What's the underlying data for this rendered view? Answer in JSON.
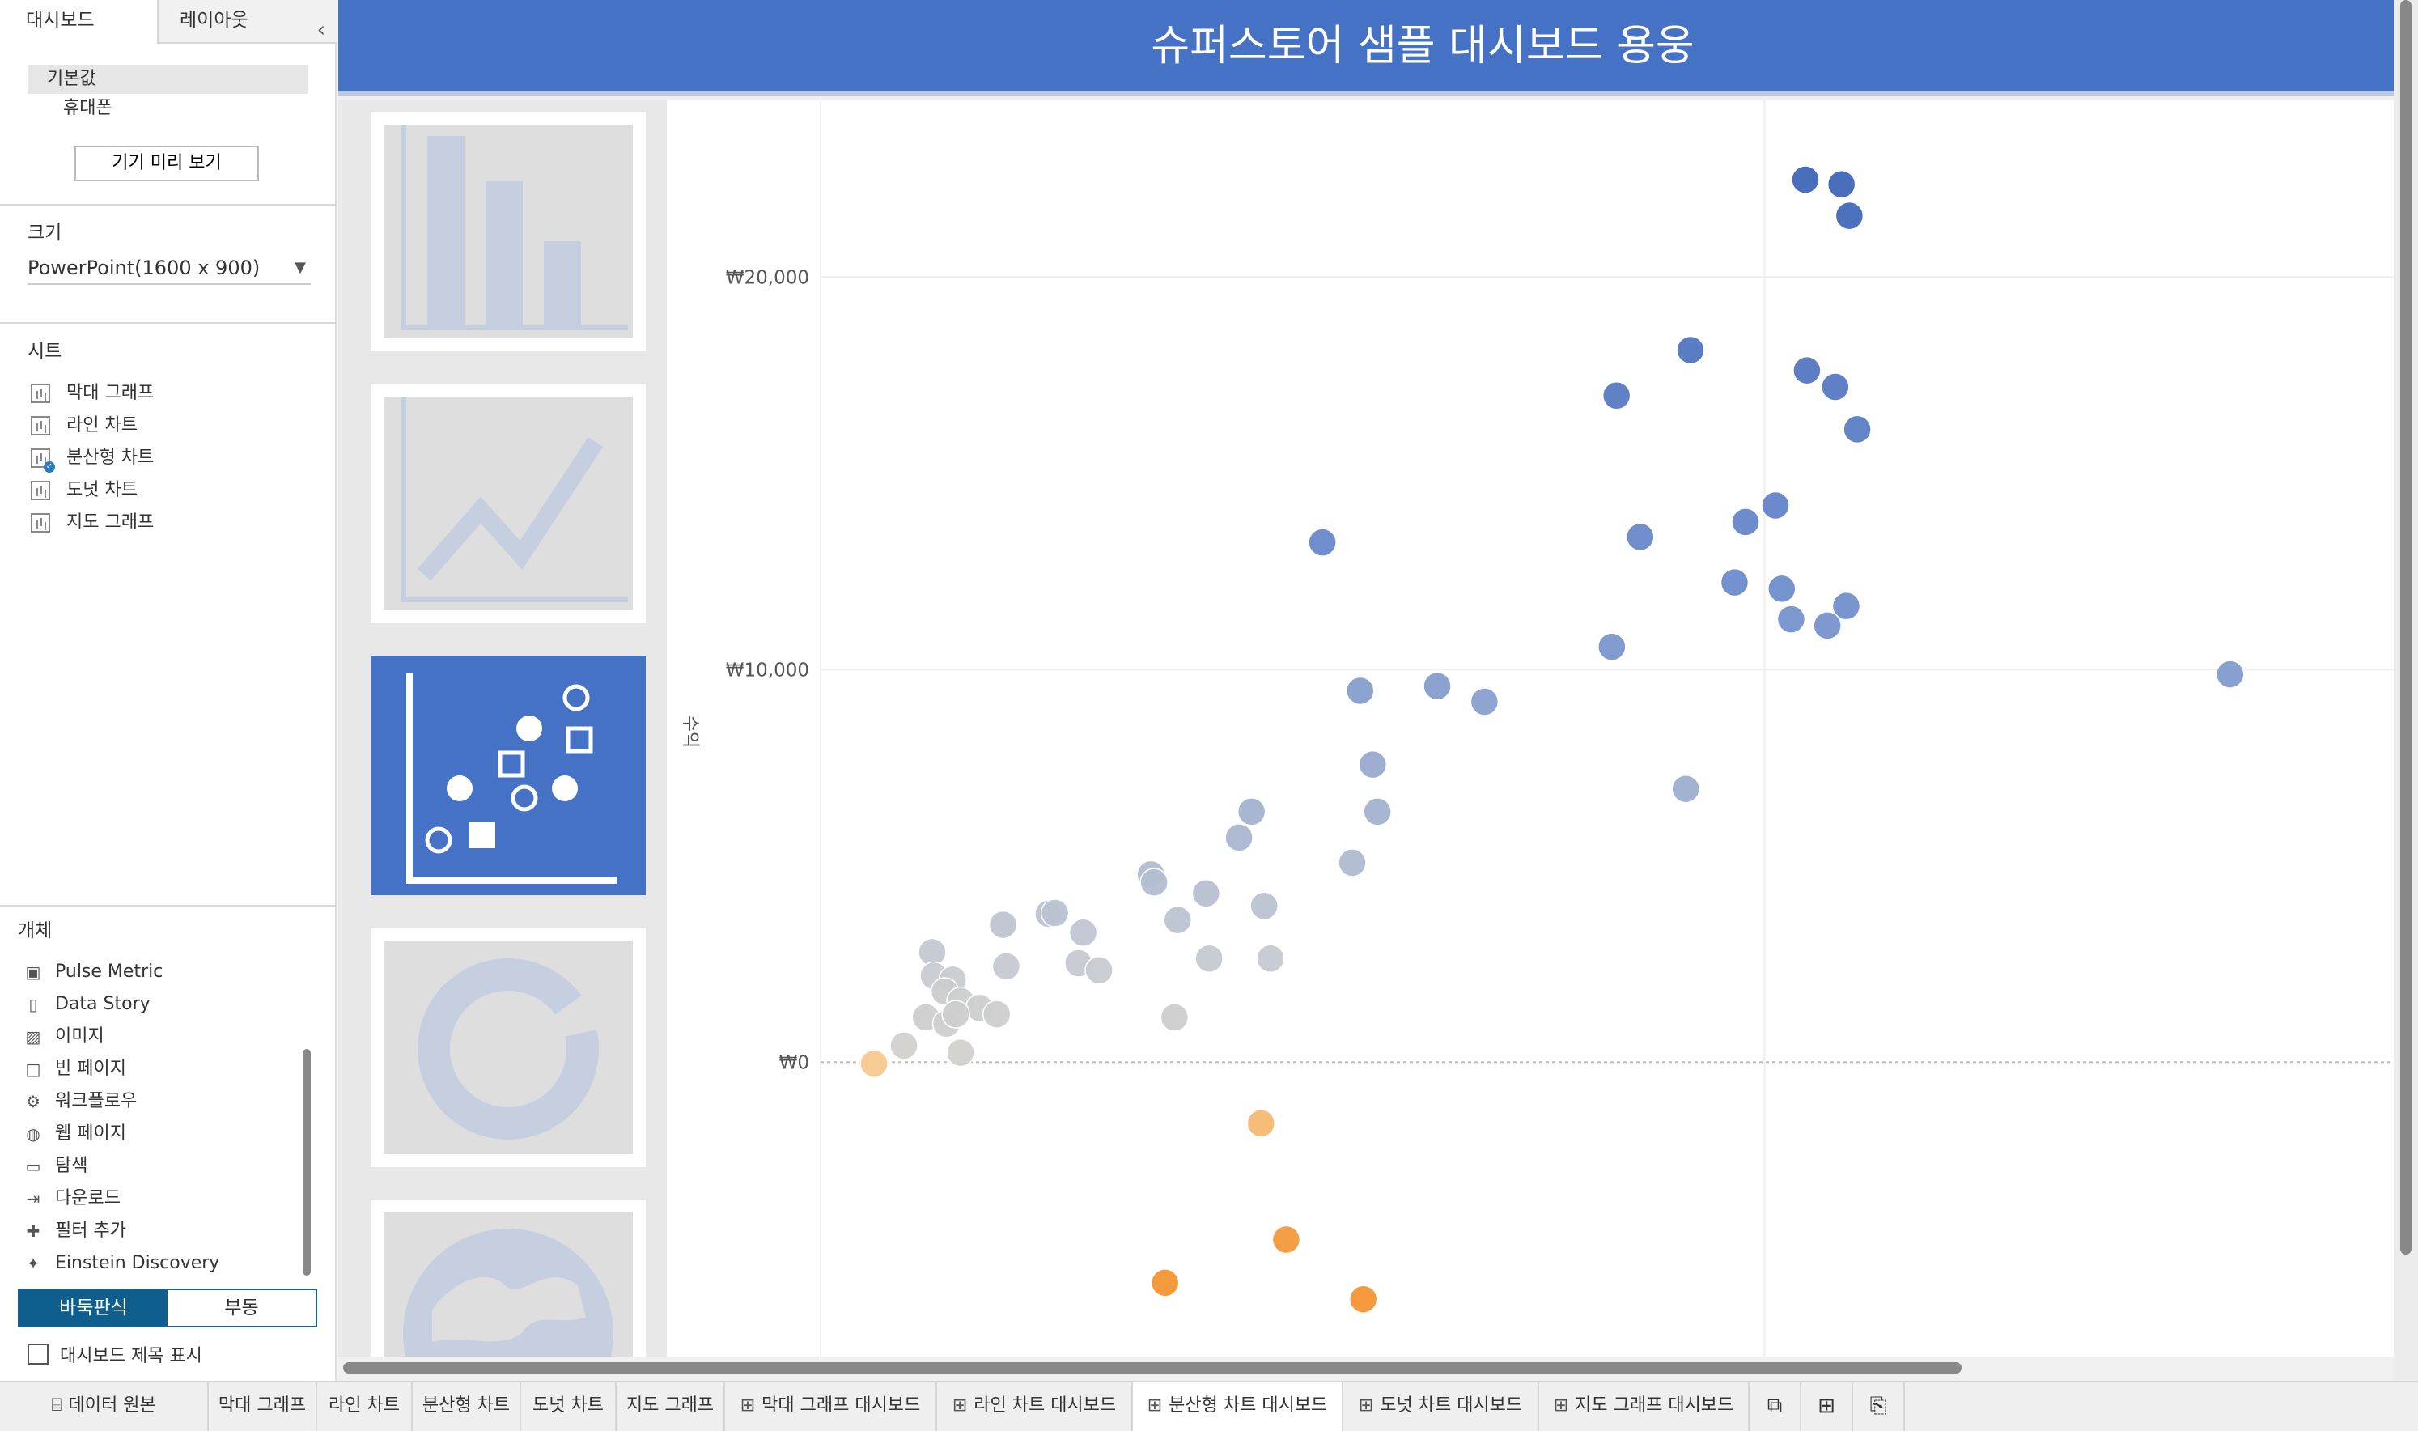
{
  "left_panel": {
    "tabs": [
      "대시보드",
      "레이아웃"
    ],
    "devices": [
      "기본값",
      "휴대폰"
    ],
    "preview_button": "기기 미리 보기",
    "size_label": "크기",
    "size_value": "PowerPoint(1600 x 900)",
    "sheets_label": "시트",
    "sheets": [
      "막대 그래프",
      "라인 차트",
      "분산형 차트",
      "도넛 차트",
      "지도 그래프"
    ],
    "objects_label": "개체",
    "objects": [
      "Pulse Metric",
      "Data Story",
      "이미지",
      "빈 페이지",
      "워크플로우",
      "웹 페이지",
      "탐색",
      "다운로드",
      "필터 추가",
      "Einstein Discovery"
    ],
    "layout_toggle": [
      "바둑판식",
      "부동"
    ],
    "show_title_label": "대시보드 제목 표시"
  },
  "dashboard": {
    "title": "슈퍼스토어 샘플 대시보드 용웅",
    "nav_icons": [
      "bar-chart-icon",
      "line-chart-icon",
      "scatter-chart-icon",
      "donut-chart-icon",
      "globe-map-icon"
    ]
  },
  "chart_data": {
    "type": "scatter",
    "title": "",
    "xlabel": "",
    "ylabel": "수익",
    "y_ticks": [
      "₩20,000",
      "₩10,000",
      "₩0"
    ],
    "ylim": [
      -7500,
      24500
    ],
    "xlim": [
      0,
      100
    ],
    "color_scale": "diverging: orange (negative profit) to gray to blue (high profit)",
    "points": [
      {
        "x": 62.6,
        "y": 22480
      },
      {
        "x": 64.9,
        "y": 22360
      },
      {
        "x": 65.4,
        "y": 21560
      },
      {
        "x": 55.3,
        "y": 18140
      },
      {
        "x": 62.7,
        "y": 17620
      },
      {
        "x": 64.5,
        "y": 17200
      },
      {
        "x": 50.6,
        "y": 16980
      },
      {
        "x": 65.9,
        "y": 16120
      },
      {
        "x": 60.7,
        "y": 14180
      },
      {
        "x": 58.8,
        "y": 13760
      },
      {
        "x": 52.1,
        "y": 13380
      },
      {
        "x": 31.9,
        "y": 13240
      },
      {
        "x": 58.1,
        "y": 12220
      },
      {
        "x": 61.1,
        "y": 12060
      },
      {
        "x": 65.2,
        "y": 11620
      },
      {
        "x": 61.7,
        "y": 11280
      },
      {
        "x": 64.0,
        "y": 11120
      },
      {
        "x": 50.3,
        "y": 10580
      },
      {
        "x": 89.6,
        "y": 9880
      },
      {
        "x": 39.2,
        "y": 9580
      },
      {
        "x": 34.3,
        "y": 9460
      },
      {
        "x": 42.2,
        "y": 9180
      },
      {
        "x": 35.1,
        "y": 7580
      },
      {
        "x": 55.0,
        "y": 6960
      },
      {
        "x": 27.4,
        "y": 6380
      },
      {
        "x": 35.4,
        "y": 6380
      },
      {
        "x": 26.6,
        "y": 5720
      },
      {
        "x": 33.8,
        "y": 5080
      },
      {
        "x": 21.0,
        "y": 4780
      },
      {
        "x": 21.2,
        "y": 4580
      },
      {
        "x": 24.5,
        "y": 4300
      },
      {
        "x": 28.2,
        "y": 3980
      },
      {
        "x": 22.7,
        "y": 3620
      },
      {
        "x": 11.6,
        "y": 3500
      },
      {
        "x": 14.5,
        "y": 3780
      },
      {
        "x": 14.9,
        "y": 3800
      },
      {
        "x": 16.7,
        "y": 3300
      },
      {
        "x": 7.1,
        "y": 2800
      },
      {
        "x": 11.8,
        "y": 2440
      },
      {
        "x": 16.4,
        "y": 2520
      },
      {
        "x": 17.7,
        "y": 2340
      },
      {
        "x": 24.7,
        "y": 2640
      },
      {
        "x": 28.6,
        "y": 2640
      },
      {
        "x": 7.2,
        "y": 2200
      },
      {
        "x": 8.4,
        "y": 2100
      },
      {
        "x": 7.9,
        "y": 1800
      },
      {
        "x": 8.9,
        "y": 1560
      },
      {
        "x": 10.1,
        "y": 1380
      },
      {
        "x": 11.2,
        "y": 1220
      },
      {
        "x": 22.5,
        "y": 1140
      },
      {
        "x": 6.7,
        "y": 1140
      },
      {
        "x": 8.0,
        "y": 980
      },
      {
        "x": 8.6,
        "y": 1220
      },
      {
        "x": 5.3,
        "y": 420
      },
      {
        "x": 3.4,
        "y": -40
      },
      {
        "x": 8.9,
        "y": 240
      },
      {
        "x": 28.0,
        "y": -1560
      },
      {
        "x": 29.6,
        "y": -4520
      },
      {
        "x": 21.9,
        "y": -5620
      },
      {
        "x": 34.5,
        "y": -6040
      }
    ]
  },
  "bottom_tabs": [
    "데이터 원본",
    "막대 그래프",
    "라인 차트",
    "분산형 차트",
    "도넛 차트",
    "지도 그래프",
    "막대 그래프 대시보드",
    "라인 차트 대시보드",
    "분산형 차트 대시보드",
    "도넛 차트 대시보드",
    "지도 그래프 대시보드"
  ],
  "colors": {
    "title_bar": "#4572c4",
    "accent_active": "#0f5f8e",
    "point_high": "#3f66b8",
    "point_mid": "#a9b7d4",
    "point_low": "#d4d2cb",
    "point_neg": "#f39533"
  }
}
